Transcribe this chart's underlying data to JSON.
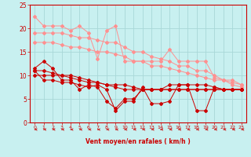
{
  "background_color": "#c8f0f0",
  "grid_color": "#a8d8d8",
  "xlabel": "Vent moyen/en rafales ( km/h )",
  "xlim": [
    -0.5,
    23.5
  ],
  "ylim": [
    0,
    25
  ],
  "xticks": [
    0,
    1,
    2,
    3,
    4,
    5,
    6,
    7,
    8,
    9,
    10,
    11,
    12,
    13,
    14,
    15,
    16,
    17,
    18,
    19,
    20,
    21,
    22,
    23
  ],
  "yticks": [
    0,
    5,
    10,
    15,
    20,
    25
  ],
  "light_pink_lines": [
    {
      "x": [
        0,
        1,
        2,
        3,
        4,
        5,
        6,
        7,
        8,
        9,
        10,
        11,
        12,
        13,
        14,
        15,
        16,
        17,
        18,
        19,
        20,
        21,
        22,
        23
      ],
      "y": [
        22.5,
        20.5,
        20.5,
        20.5,
        19.5,
        20.5,
        19,
        13.5,
        19.5,
        20.5,
        13,
        13,
        13,
        13,
        13,
        15.5,
        13,
        13,
        13,
        13,
        9.5,
        9,
        8,
        7.5
      ]
    },
    {
      "x": [
        0,
        1,
        2,
        3,
        4,
        5,
        6,
        7,
        8,
        9,
        10,
        11,
        12,
        13,
        14,
        15,
        16,
        17,
        18,
        19,
        20,
        21,
        22,
        23
      ],
      "y": [
        19,
        19,
        19,
        19,
        18.5,
        18,
        18,
        17.5,
        17,
        17,
        16,
        15,
        15,
        14,
        13.5,
        13,
        12,
        12,
        11,
        11,
        10,
        9,
        9,
        8
      ]
    },
    {
      "x": [
        0,
        1,
        2,
        3,
        4,
        5,
        6,
        7,
        8,
        9,
        10,
        11,
        12,
        13,
        14,
        15,
        16,
        17,
        18,
        19,
        20,
        21,
        22,
        23
      ],
      "y": [
        17,
        17,
        17,
        16.5,
        16,
        16,
        15.5,
        15,
        15,
        14.5,
        14,
        13,
        13,
        12,
        12,
        11.5,
        11,
        10.5,
        10,
        9.5,
        9,
        9,
        8.5,
        8
      ]
    }
  ],
  "dark_red_lines": [
    {
      "x": [
        0,
        1,
        2,
        3,
        4,
        5,
        6,
        7,
        8,
        9,
        10,
        11,
        12,
        13,
        14,
        15,
        16,
        17,
        18,
        19,
        20,
        21,
        22,
        23
      ],
      "y": [
        11.5,
        13,
        11.5,
        9,
        9,
        7,
        8,
        7.5,
        4.5,
        3,
        5,
        5,
        7,
        7,
        7,
        8,
        8,
        8,
        8,
        8,
        7.5,
        7,
        7,
        7
      ]
    },
    {
      "x": [
        0,
        1,
        2,
        3,
        4,
        5,
        6,
        7,
        8,
        9,
        10,
        11,
        12,
        13,
        14,
        15,
        16,
        17,
        18,
        19,
        20,
        21,
        22,
        23
      ],
      "y": [
        11,
        9,
        9,
        8.5,
        8.5,
        8,
        7.5,
        8,
        7,
        2.5,
        4.5,
        4.5,
        7.5,
        4,
        4,
        4.5,
        8,
        8,
        2.5,
        2.5,
        7.5,
        7,
        7,
        7
      ]
    },
    {
      "x": [
        0,
        1,
        2,
        3,
        4,
        5,
        6,
        7,
        8,
        9,
        10,
        11,
        12,
        13,
        14,
        15,
        16,
        17,
        18,
        19,
        20,
        21,
        22,
        23
      ],
      "y": [
        10,
        10,
        10,
        10,
        10,
        9.5,
        9,
        8.5,
        8,
        8,
        8,
        7.5,
        7,
        7,
        7,
        7,
        7,
        7,
        7,
        7,
        7,
        7,
        7,
        7
      ]
    },
    {
      "x": [
        0,
        1,
        2,
        3,
        4,
        5,
        6,
        7,
        8,
        9,
        10,
        11,
        12,
        13,
        14,
        15,
        16,
        17,
        18,
        19,
        20,
        21,
        22,
        23
      ],
      "y": [
        11,
        11,
        10.5,
        10,
        9.5,
        9,
        8.5,
        8.5,
        8,
        7.5,
        7,
        7,
        7,
        7,
        7,
        7,
        7,
        7,
        7,
        7,
        7,
        7,
        7,
        7
      ]
    }
  ],
  "light_pink_color": "#ff9090",
  "dark_red_color": "#cc0000",
  "axis_color": "#cc0000",
  "tick_color": "#cc0000",
  "label_color": "#cc0000",
  "marker_size": 2.0,
  "line_width": 0.7
}
